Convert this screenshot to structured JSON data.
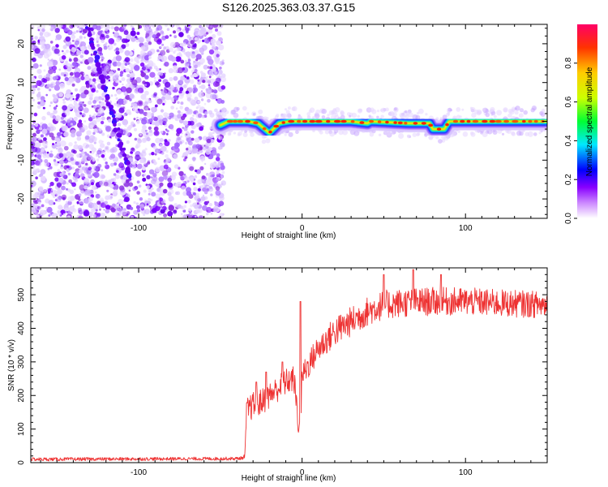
{
  "chart_data": [
    {
      "type": "heatmap",
      "title": "S126.2025.363.03.37.G15",
      "xlabel": "Height of straight line (km)",
      "ylabel": "Frequency (Hz)",
      "xlim": [
        -166,
        150
      ],
      "ylim": [
        -25,
        25
      ],
      "x_ticks": [
        -100,
        0,
        100
      ],
      "y_ticks": [
        20,
        10,
        0,
        -10,
        -20
      ],
      "colorbar": {
        "label": "Normalized spectral amplitude",
        "range": [
          0,
          1
        ],
        "ticks": [
          0.0,
          0.2,
          0.4,
          0.6,
          0.8
        ]
      },
      "noise_region_x": [
        -166,
        -50
      ],
      "signal_track": [
        {
          "x": -50,
          "y": -1
        },
        {
          "x": -45,
          "y": 0
        },
        {
          "x": -33,
          "y": 0
        },
        {
          "x": -27,
          "y": -0.5
        },
        {
          "x": -20,
          "y": -3
        },
        {
          "x": -14,
          "y": -0.5
        },
        {
          "x": -7,
          "y": 0
        },
        {
          "x": 30,
          "y": 0
        },
        {
          "x": 40,
          "y": -0.5
        },
        {
          "x": 42,
          "y": 0
        },
        {
          "x": 65,
          "y": -0.5
        },
        {
          "x": 78,
          "y": -0.5
        },
        {
          "x": 80,
          "y": -2
        },
        {
          "x": 87,
          "y": -2
        },
        {
          "x": 90,
          "y": 0
        },
        {
          "x": 150,
          "y": 0
        }
      ],
      "diagonal_streak": [
        {
          "x": -132,
          "y": 25
        },
        {
          "x": -105,
          "y": -14
        }
      ]
    },
    {
      "type": "line",
      "title": "",
      "xlabel": "Height of straight line (km)",
      "ylabel": "SNR (10 * v/v)",
      "xlim": [
        -166,
        150
      ],
      "ylim": [
        0,
        580
      ],
      "x_ticks": [
        -100,
        0,
        100
      ],
      "y_ticks": [
        0,
        100,
        200,
        300,
        400,
        500
      ],
      "series": [
        {
          "name": "SNR",
          "color": "#ee3333",
          "envelope": [
            {
              "x": -166,
              "y": 10
            },
            {
              "x": -40,
              "y": 12
            },
            {
              "x": -35,
              "y": 15
            },
            {
              "x": -34,
              "y": 155
            },
            {
              "x": -30,
              "y": 170
            },
            {
              "x": -25,
              "y": 180
            },
            {
              "x": -20,
              "y": 200
            },
            {
              "x": -15,
              "y": 220
            },
            {
              "x": -10,
              "y": 240
            },
            {
              "x": -5,
              "y": 250
            },
            {
              "x": -3,
              "y": 150
            },
            {
              "x": -1,
              "y": 70
            },
            {
              "x": 0,
              "y": 260
            },
            {
              "x": 5,
              "y": 300
            },
            {
              "x": 10,
              "y": 340
            },
            {
              "x": 20,
              "y": 390
            },
            {
              "x": 30,
              "y": 420
            },
            {
              "x": 40,
              "y": 450
            },
            {
              "x": 50,
              "y": 470
            },
            {
              "x": 60,
              "y": 475
            },
            {
              "x": 80,
              "y": 480
            },
            {
              "x": 100,
              "y": 480
            },
            {
              "x": 120,
              "y": 475
            },
            {
              "x": 150,
              "y": 470
            }
          ],
          "noise_amplitude": [
            {
              "x": -166,
              "y": 5
            },
            {
              "x": -36,
              "y": 5
            },
            {
              "x": -33,
              "y": 40
            },
            {
              "x": 0,
              "y": 40
            },
            {
              "x": 20,
              "y": 45
            },
            {
              "x": 150,
              "y": 40
            }
          ],
          "peaks": [
            {
              "x": -28,
              "y": 240
            },
            {
              "x": -22,
              "y": 270
            },
            {
              "x": -12,
              "y": 300
            },
            {
              "x": -1,
              "y": 480
            },
            {
              "x": 50,
              "y": 560
            },
            {
              "x": 68,
              "y": 575
            },
            {
              "x": 85,
              "y": 560
            }
          ]
        }
      ]
    }
  ]
}
